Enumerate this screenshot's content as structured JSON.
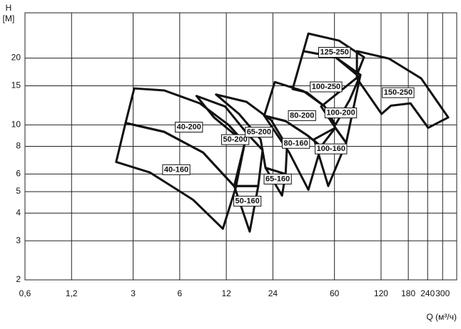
{
  "chart_data": {
    "type": "polygon",
    "y_label": "H",
    "y_unit": "[M]",
    "x_label": "Q (м³/ч)",
    "log_x": true,
    "log_y": true,
    "grid": true,
    "color": "#111111",
    "xlim": [
      0.6,
      370
    ],
    "ylim": [
      2,
      32
    ],
    "xticks": [
      {
        "value": 0.6,
        "label": "0,6"
      },
      {
        "value": 1.2,
        "label": "1,2"
      },
      3,
      6,
      12,
      24,
      60,
      120,
      180,
      240,
      300
    ],
    "yticks": [
      2,
      3,
      4,
      5,
      6,
      8,
      10,
      15,
      20
    ],
    "regions": [
      {
        "name": "40-200",
        "points": [
          [
            3.05,
            14.6
          ],
          [
            4.76,
            14.3
          ],
          [
            8.1,
            12.5
          ],
          [
            12.4,
            10.0
          ],
          [
            15.8,
            8.3
          ],
          [
            13.8,
            5.2
          ],
          [
            8.5,
            7.5
          ],
          [
            4.76,
            9.3
          ],
          [
            2.68,
            10.2
          ]
        ]
      },
      {
        "name": "40-160",
        "points": [
          [
            2.68,
            10.2
          ],
          [
            4.76,
            9.3
          ],
          [
            8.5,
            7.5
          ],
          [
            13.8,
            5.2
          ],
          [
            11.4,
            3.4
          ],
          [
            7.3,
            4.6
          ],
          [
            3.85,
            6.1
          ],
          [
            2.33,
            6.8
          ]
        ]
      },
      {
        "name": "50-200",
        "points": [
          [
            7.7,
            13.5
          ],
          [
            11.8,
            12.1
          ],
          [
            16.2,
            9.2
          ],
          [
            20.6,
            7.7
          ],
          [
            19.3,
            5.3
          ],
          [
            13.5,
            5.3
          ],
          [
            15.8,
            8.3
          ],
          [
            10.0,
            10.8
          ]
        ]
      },
      {
        "name": "50-160",
        "points": [
          [
            13.5,
            5.3
          ],
          [
            19.3,
            5.3
          ],
          [
            17.0,
            3.3
          ]
        ]
      },
      {
        "name": "65-200",
        "points": [
          [
            10.3,
            13.7
          ],
          [
            16.2,
            12.7
          ],
          [
            23.4,
            10.5
          ],
          [
            29.6,
            8.0
          ],
          [
            29.0,
            6.0
          ],
          [
            21.5,
            6.4
          ],
          [
            20.0,
            8.6
          ],
          [
            14.5,
            11.2
          ]
        ]
      },
      {
        "name": "65-160",
        "points": [
          [
            21.5,
            6.4
          ],
          [
            29.0,
            6.0
          ],
          [
            27.5,
            4.8
          ]
        ]
      },
      {
        "name": "80-200",
        "points": [
          [
            24.7,
            15.6
          ],
          [
            37.8,
            14.2
          ],
          [
            51.9,
            12.1
          ],
          [
            60.8,
            9.7
          ],
          [
            49.2,
            8.0
          ],
          [
            39.8,
            9.0
          ],
          [
            29.0,
            10.4
          ],
          [
            21.1,
            11.0
          ]
        ]
      },
      {
        "name": "80-160",
        "points": [
          [
            21.1,
            11.0
          ],
          [
            29.0,
            10.4
          ],
          [
            39.8,
            9.0
          ],
          [
            49.2,
            8.0
          ],
          [
            40.7,
            5.1
          ],
          [
            30.6,
            7.5
          ]
        ]
      },
      {
        "name": "125-250",
        "points": [
          [
            40.7,
            25.8
          ],
          [
            64.0,
            24.0
          ],
          [
            93.1,
            20.2
          ],
          [
            83.8,
            16.8
          ],
          [
            60.8,
            20.2
          ],
          [
            37.8,
            21.5
          ]
        ]
      },
      {
        "name": "100-250",
        "points": [
          [
            37.8,
            21.5
          ],
          [
            60.8,
            20.2
          ],
          [
            88.3,
            16.8
          ],
          [
            75.4,
            13.0
          ],
          [
            60.8,
            10.0
          ],
          [
            51.9,
            12.1
          ],
          [
            39.8,
            14.0
          ],
          [
            32.2,
            14.5
          ]
        ]
      },
      {
        "name": "100-200",
        "points": [
          [
            49.2,
            12.1
          ],
          [
            88.3,
            16.8
          ],
          [
            71.4,
            8.3
          ],
          [
            60.8,
            9.7
          ]
        ]
      },
      {
        "name": "100-160",
        "points": [
          [
            44.3,
            8.6
          ],
          [
            60.8,
            9.7
          ],
          [
            71.4,
            8.3
          ],
          [
            54.7,
            5.3
          ]
        ]
      },
      {
        "name": "150-250",
        "points": [
          [
            83.8,
            21.5
          ],
          [
            135,
            19.9
          ],
          [
            218,
            16.2
          ],
          [
            326,
            10.8
          ],
          [
            242,
            9.7
          ],
          [
            186,
            12.5
          ],
          [
            139,
            12.2
          ],
          [
            121,
            11.2
          ],
          [
            83.8,
            16.2
          ]
        ]
      }
    ]
  }
}
